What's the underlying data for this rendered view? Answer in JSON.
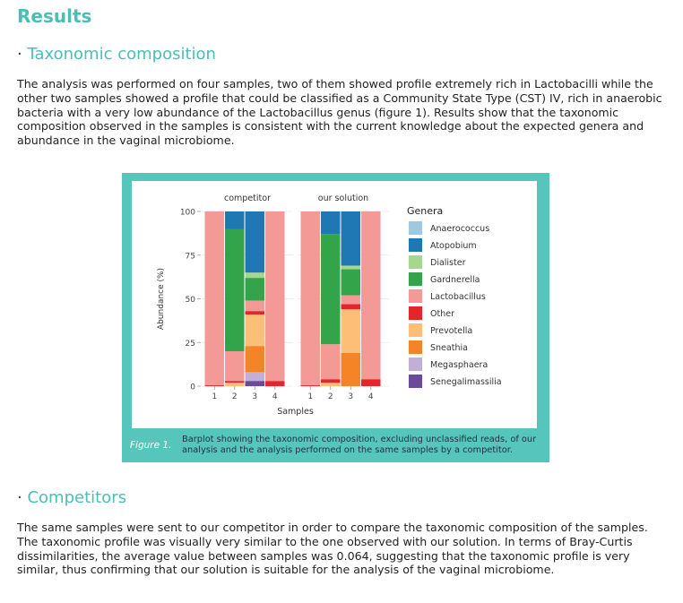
{
  "page": {
    "title": "Results",
    "section1": {
      "bullet": "·",
      "heading": "Taxonomic composition",
      "paragraph": "The analysis was performed on four samples, two of them showed profile extremely rich in Lactobacilli while the other two samples showed a profile that could be classified as a Community State Type (CST) IV, rich in anaerobic bacteria with a very low abundance of the Lactobacillus genus (figure 1). Results show that the taxonomic composition observed in the samples is consistent with the current knowledge about the expected genera and abundance in the vaginal microbiome."
    },
    "figure": {
      "label": "Figure 1.",
      "caption": "Barplot showing the taxonomic composition, excluding unclassified reads, of our analysis and the analysis performed on the same samples by a competitor."
    },
    "section2": {
      "bullet": "·",
      "heading": "Competitors",
      "paragraph": "The same samples were sent to our competitor in order to compare the taxonomic composition of the samples. The taxonomic profile was visually very similar to the one observed with our solution. In terms of Bray-Curtis dissimilarities, the average value between samples was 0.064, suggesting that the taxonomic profile is very similar, thus confirming that our solution is suitable for the analysis of the vaginal microbiome."
    }
  },
  "chart_data": {
    "type": "bar",
    "stacked": true,
    "xlabel": "Samples",
    "ylabel": "Abundance (%)",
    "ylim": [
      0,
      100
    ],
    "yticks": [
      0,
      25,
      50,
      75,
      100
    ],
    "legend_title": "Genera",
    "legend_position": "right",
    "grid": true,
    "genera": [
      {
        "name": "Anaerococcus",
        "color": "#9ecae1"
      },
      {
        "name": "Atopobium",
        "color": "#1f78b4"
      },
      {
        "name": "Dialister",
        "color": "#a6d78f"
      },
      {
        "name": "Gardnerella",
        "color": "#33a44a"
      },
      {
        "name": "Lactobacillus",
        "color": "#f39a97"
      },
      {
        "name": "Other",
        "color": "#e3262c"
      },
      {
        "name": "Prevotella",
        "color": "#fdbe78"
      },
      {
        "name": "Sneathia",
        "color": "#f58426"
      },
      {
        "name": "Megasphaera",
        "color": "#c3afd6"
      },
      {
        "name": "Senegalimassilia",
        "color": "#6a4a9c"
      }
    ],
    "panels": [
      {
        "title": "competitor",
        "samples": [
          "1",
          "2",
          "3",
          "4"
        ],
        "series": [
          {
            "name": "Anaerococcus",
            "values": [
              0,
              0,
              0,
              0
            ]
          },
          {
            "name": "Atopobium",
            "values": [
              0,
              10,
              35,
              0
            ]
          },
          {
            "name": "Dialister",
            "values": [
              0,
              0,
              3,
              0
            ]
          },
          {
            "name": "Gardnerella",
            "values": [
              0,
              70,
              13,
              0
            ]
          },
          {
            "name": "Lactobacillus",
            "values": [
              99.5,
              17,
              6,
              97
            ]
          },
          {
            "name": "Other",
            "values": [
              0.5,
              1,
              2,
              3
            ]
          },
          {
            "name": "Prevotella",
            "values": [
              0,
              2,
              18,
              0
            ]
          },
          {
            "name": "Sneathia",
            "values": [
              0,
              0,
              15,
              0
            ]
          },
          {
            "name": "Megasphaera",
            "values": [
              0,
              0,
              5,
              0
            ]
          },
          {
            "name": "Senegalimassilia",
            "values": [
              0,
              0,
              3,
              0
            ]
          }
        ]
      },
      {
        "title": "our solution",
        "samples": [
          "1",
          "2",
          "3",
          "4"
        ],
        "series": [
          {
            "name": "Anaerococcus",
            "values": [
              0,
              0,
              0,
              0
            ]
          },
          {
            "name": "Atopobium",
            "values": [
              0,
              13,
              31,
              0
            ]
          },
          {
            "name": "Dialister",
            "values": [
              0,
              0,
              2,
              0
            ]
          },
          {
            "name": "Gardnerella",
            "values": [
              0,
              63,
              15,
              0
            ]
          },
          {
            "name": "Lactobacillus",
            "values": [
              99.5,
              20,
              5,
              96
            ]
          },
          {
            "name": "Other",
            "values": [
              0.5,
              2,
              3,
              4
            ]
          },
          {
            "name": "Prevotella",
            "values": [
              0,
              2,
              25,
              0
            ]
          },
          {
            "name": "Sneathia",
            "values": [
              0,
              0,
              19,
              0
            ]
          },
          {
            "name": "Megasphaera",
            "values": [
              0,
              0,
              0,
              0
            ]
          },
          {
            "name": "Senegalimassilia",
            "values": [
              0,
              0,
              0,
              0
            ]
          }
        ]
      }
    ]
  }
}
